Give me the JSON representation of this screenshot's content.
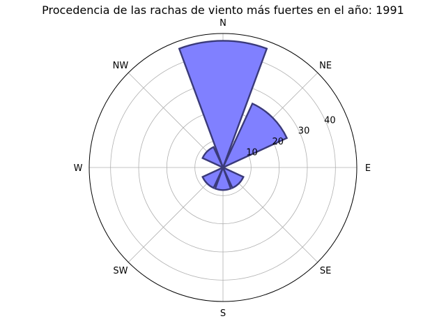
{
  "chart_data": {
    "type": "polar-bar",
    "title": "Procedencia de las rachas de viento más fuertes en el año: 1991",
    "directions": [
      "N",
      "NE",
      "E",
      "SE",
      "S",
      "SW",
      "W",
      "NW"
    ],
    "values": [
      45,
      25,
      0,
      8,
      8,
      8,
      0,
      8
    ],
    "r_ticks": [
      10,
      20,
      30,
      40
    ],
    "r_tick_labels": [
      "10",
      "20",
      "30",
      "40"
    ],
    "r_max": 47.6,
    "bar_fill_color": "#8080ff",
    "bar_edge_color": "#3a3a7a",
    "grid": true
  }
}
